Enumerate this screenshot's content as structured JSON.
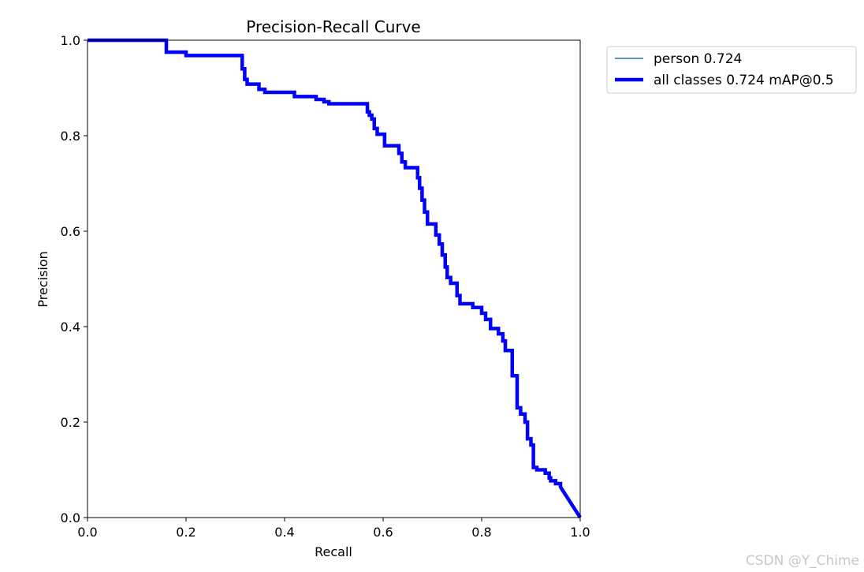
{
  "chart_data": {
    "type": "line",
    "title": "Precision-Recall Curve",
    "xlabel": "Recall",
    "ylabel": "Precision",
    "xlim": [
      0,
      1
    ],
    "ylim": [
      0,
      1
    ],
    "xticks": [
      "0.0",
      "0.2",
      "0.4",
      "0.6",
      "0.8",
      "1.0"
    ],
    "yticks": [
      "0.0",
      "0.2",
      "0.4",
      "0.6",
      "0.8",
      "1.0"
    ],
    "grid": false,
    "legend_position": "outside-top-right",
    "series": [
      {
        "name": "person 0.724",
        "color": "#1f77b4",
        "points": []
      },
      {
        "name": "all classes 0.724 mAP@0.5",
        "color": "#0000ff",
        "points": [
          [
            0.0,
            1.0
          ],
          [
            0.16,
            1.0
          ],
          [
            0.16,
            0.975
          ],
          [
            0.2,
            0.975
          ],
          [
            0.2,
            0.968
          ],
          [
            0.314,
            0.968
          ],
          [
            0.314,
            0.94
          ],
          [
            0.319,
            0.94
          ],
          [
            0.319,
            0.918
          ],
          [
            0.324,
            0.918
          ],
          [
            0.324,
            0.908
          ],
          [
            0.348,
            0.908
          ],
          [
            0.348,
            0.897
          ],
          [
            0.36,
            0.897
          ],
          [
            0.36,
            0.891
          ],
          [
            0.42,
            0.891
          ],
          [
            0.42,
            0.882
          ],
          [
            0.464,
            0.882
          ],
          [
            0.464,
            0.876
          ],
          [
            0.48,
            0.876
          ],
          [
            0.48,
            0.871
          ],
          [
            0.49,
            0.871
          ],
          [
            0.49,
            0.867
          ],
          [
            0.568,
            0.867
          ],
          [
            0.568,
            0.85
          ],
          [
            0.572,
            0.85
          ],
          [
            0.572,
            0.843
          ],
          [
            0.577,
            0.843
          ],
          [
            0.577,
            0.835
          ],
          [
            0.582,
            0.835
          ],
          [
            0.582,
            0.815
          ],
          [
            0.588,
            0.815
          ],
          [
            0.588,
            0.803
          ],
          [
            0.603,
            0.803
          ],
          [
            0.603,
            0.779
          ],
          [
            0.632,
            0.779
          ],
          [
            0.632,
            0.763
          ],
          [
            0.638,
            0.763
          ],
          [
            0.638,
            0.745
          ],
          [
            0.645,
            0.745
          ],
          [
            0.645,
            0.733
          ],
          [
            0.67,
            0.733
          ],
          [
            0.67,
            0.712
          ],
          [
            0.674,
            0.712
          ],
          [
            0.674,
            0.69
          ],
          [
            0.679,
            0.69
          ],
          [
            0.679,
            0.665
          ],
          [
            0.684,
            0.665
          ],
          [
            0.684,
            0.64
          ],
          [
            0.69,
            0.64
          ],
          [
            0.69,
            0.615
          ],
          [
            0.707,
            0.615
          ],
          [
            0.707,
            0.592
          ],
          [
            0.714,
            0.592
          ],
          [
            0.714,
            0.573
          ],
          [
            0.72,
            0.573
          ],
          [
            0.72,
            0.55
          ],
          [
            0.726,
            0.55
          ],
          [
            0.726,
            0.525
          ],
          [
            0.73,
            0.525
          ],
          [
            0.73,
            0.503
          ],
          [
            0.737,
            0.503
          ],
          [
            0.737,
            0.491
          ],
          [
            0.75,
            0.491
          ],
          [
            0.75,
            0.465
          ],
          [
            0.756,
            0.465
          ],
          [
            0.756,
            0.448
          ],
          [
            0.782,
            0.448
          ],
          [
            0.782,
            0.44
          ],
          [
            0.8,
            0.44
          ],
          [
            0.8,
            0.428
          ],
          [
            0.808,
            0.428
          ],
          [
            0.808,
            0.415
          ],
          [
            0.818,
            0.415
          ],
          [
            0.818,
            0.396
          ],
          [
            0.834,
            0.396
          ],
          [
            0.834,
            0.385
          ],
          [
            0.843,
            0.385
          ],
          [
            0.843,
            0.37
          ],
          [
            0.848,
            0.37
          ],
          [
            0.848,
            0.35
          ],
          [
            0.862,
            0.35
          ],
          [
            0.862,
            0.297
          ],
          [
            0.872,
            0.297
          ],
          [
            0.872,
            0.23
          ],
          [
            0.879,
            0.23
          ],
          [
            0.879,
            0.217
          ],
          [
            0.888,
            0.217
          ],
          [
            0.888,
            0.2
          ],
          [
            0.893,
            0.2
          ],
          [
            0.893,
            0.165
          ],
          [
            0.9,
            0.165
          ],
          [
            0.9,
            0.152
          ],
          [
            0.905,
            0.152
          ],
          [
            0.905,
            0.105
          ],
          [
            0.912,
            0.105
          ],
          [
            0.912,
            0.1
          ],
          [
            0.929,
            0.1
          ],
          [
            0.929,
            0.093
          ],
          [
            0.937,
            0.093
          ],
          [
            0.937,
            0.083
          ],
          [
            0.94,
            0.083
          ],
          [
            0.94,
            0.077
          ],
          [
            0.95,
            0.077
          ],
          [
            0.95,
            0.071
          ],
          [
            0.96,
            0.071
          ],
          [
            0.96,
            0.064
          ],
          [
            1.0,
            0.0
          ]
        ]
      }
    ]
  },
  "watermark": "CSDN @Y_Chime"
}
